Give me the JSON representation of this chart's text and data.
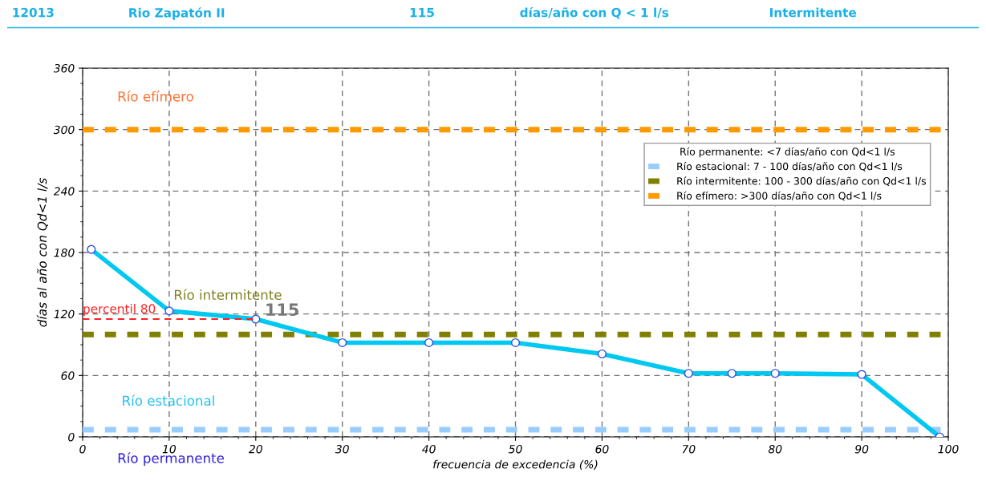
{
  "chart_data": {
    "type": "line",
    "xlabel": "frecuencia de excedencia (%)",
    "ylabel": "días al año con Qd<1 l/s",
    "legend_title": "Río permanente: <7 días/año con Qd<1 l/s",
    "x": [
      1,
      10,
      20,
      30,
      40,
      50,
      60,
      70,
      75,
      80,
      90,
      99
    ],
    "series": [
      {
        "color": "#00c8f0",
        "values": [
          183,
          123,
          115,
          92,
          92,
          92,
          81,
          62,
          62,
          62,
          61,
          0
        ],
        "marker": "circle"
      },
      {
        "type": "line",
        "color": "#ff2020",
        "x": [
          0,
          20
        ],
        "values": [
          115,
          115
        ],
        "line_style": "dashed",
        "marker": "none"
      }
    ],
    "xlim": [
      0,
      100
    ],
    "ylim": [
      0,
      360
    ],
    "xticks": [
      0,
      10,
      20,
      30,
      40,
      50,
      60,
      70,
      80,
      90,
      100
    ],
    "yticks": [
      0,
      60,
      120,
      180,
      240,
      300,
      360
    ],
    "grid": true,
    "legend": "top right",
    "ref_lines": [
      {
        "axis": "y",
        "value": 7,
        "label": "Río estacional: 7 - 100 días/año con Qd<1 l/s",
        "color": "#99ccff",
        "line_style": "dashed"
      },
      {
        "axis": "y",
        "value": 100,
        "label": "Río intermitente: 100 - 300 días/año con Qd<1 l/s",
        "color": "#808000",
        "line_style": "dashed"
      },
      {
        "axis": "y",
        "value": 300,
        "label": "Río efímero: >300 días/año con Qd<1 l/s",
        "color": "#ff9900",
        "line_style": "dashed"
      }
    ],
    "annotations": [
      "12013",
      "Rio Zapatón II",
      "115",
      "días/año con Q < 1 l/s",
      "Intermitente",
      {
        "text": "115",
        "x": 20,
        "y": 115
      },
      {
        "text": "percentil 80",
        "x": 0,
        "y": 115
      },
      "Río efímero",
      "Río intermitente",
      "Río estacional",
      "Río permanente"
    ]
  }
}
